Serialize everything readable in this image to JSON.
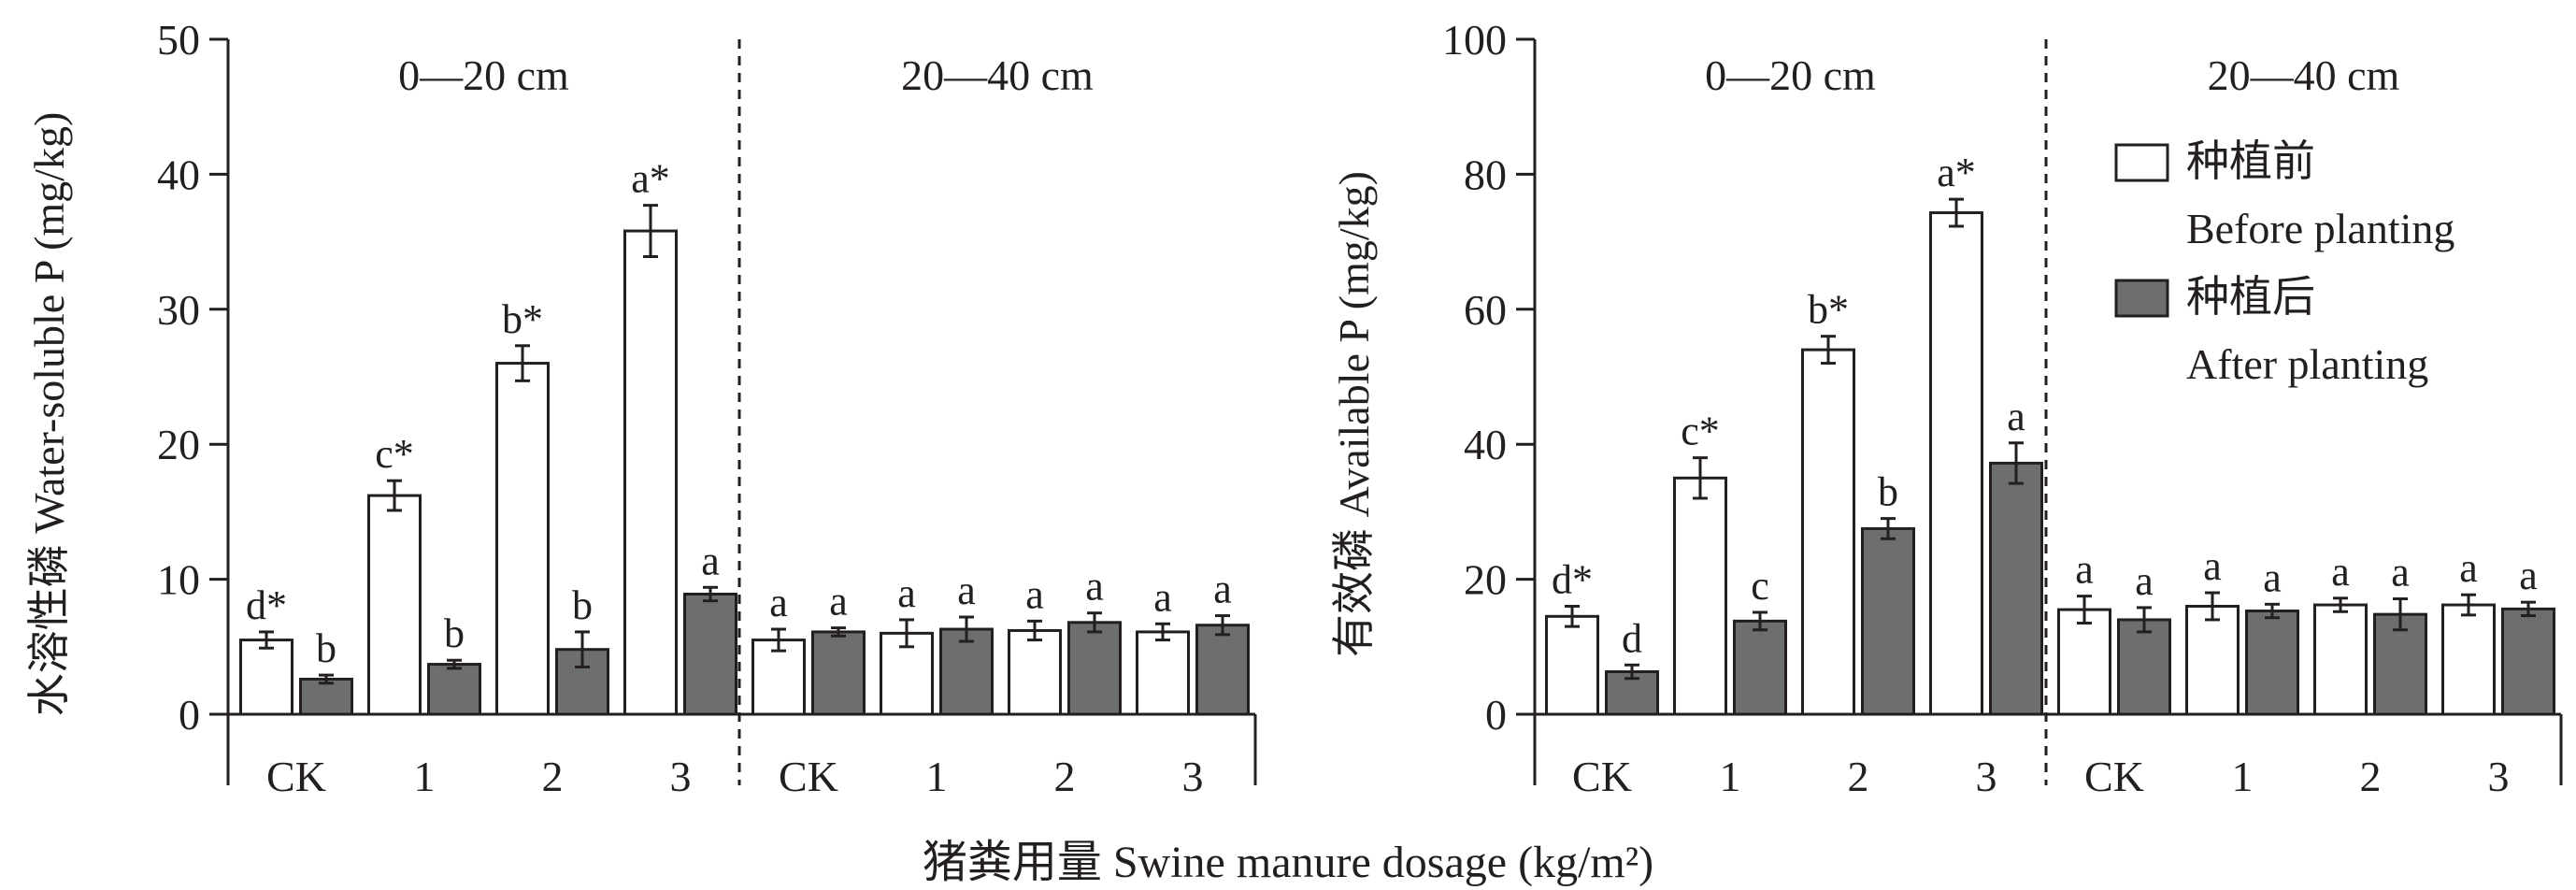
{
  "figure": {
    "xlabel": "猪粪用量 Swine manure dosage (kg/m²)"
  },
  "chart_data": [
    {
      "type": "bar",
      "ylabel": "水溶性磷 Water-soluble P (mg/kg)",
      "ylim": [
        0,
        50
      ],
      "yticks": [
        "0",
        "10",
        "20",
        "30",
        "40",
        "50"
      ],
      "groups": [
        {
          "label": "0—20 cm",
          "categories": [
            "CK",
            "1",
            "2",
            "3"
          ]
        },
        {
          "label": "20—40 cm",
          "categories": [
            "CK",
            "1",
            "2",
            "3"
          ]
        }
      ],
      "series": [
        {
          "name": "种植前 Before planting",
          "values": [
            5.5,
            16.2,
            26.0,
            35.8,
            5.5,
            6.0,
            6.2,
            6.1
          ],
          "errors": [
            0.6,
            1.1,
            1.3,
            1.9,
            0.8,
            1.0,
            0.7,
            0.6
          ],
          "labels": [
            "d*",
            "c*",
            "b*",
            "a*",
            "a",
            "a",
            "a",
            "a"
          ]
        },
        {
          "name": "种植后 After planting",
          "values": [
            2.6,
            3.7,
            4.8,
            8.9,
            6.1,
            6.3,
            6.8,
            6.6
          ],
          "errors": [
            0.3,
            0.3,
            1.3,
            0.5,
            0.3,
            0.9,
            0.7,
            0.7
          ],
          "labels": [
            "b",
            "b",
            "b",
            "a",
            "a",
            "a",
            "a",
            "a"
          ]
        }
      ],
      "legend": "none",
      "grid": false
    },
    {
      "type": "bar",
      "ylabel": "有效磷 Available P (mg/kg)",
      "ylim": [
        0,
        100
      ],
      "yticks": [
        "0",
        "20",
        "40",
        "60",
        "80",
        "100"
      ],
      "groups": [
        {
          "label": "0—20 cm",
          "categories": [
            "CK",
            "1",
            "2",
            "3"
          ]
        },
        {
          "label": "20—40 cm",
          "categories": [
            "CK",
            "1",
            "2",
            "3"
          ]
        }
      ],
      "series": [
        {
          "name": "种植前 Before planting",
          "values": [
            14.5,
            35.0,
            54.0,
            74.3,
            15.5,
            16.0,
            16.2,
            16.2
          ],
          "errors": [
            1.5,
            3.0,
            2.0,
            2.0,
            2.0,
            2.0,
            1.0,
            1.5
          ],
          "labels": [
            "d*",
            "c*",
            "b*",
            "a*",
            "a",
            "a",
            "a",
            "a"
          ]
        },
        {
          "name": "种植后 After planting",
          "values": [
            6.3,
            13.8,
            27.5,
            37.2,
            14.0,
            15.3,
            14.8,
            15.6
          ],
          "errors": [
            1.0,
            1.3,
            1.5,
            3.0,
            1.8,
            1.0,
            2.3,
            1.0
          ],
          "labels": [
            "d",
            "c",
            "b",
            "a",
            "a",
            "a",
            "a",
            "a"
          ]
        }
      ],
      "legend": "top-right",
      "legend_entries": [
        {
          "cn": "种植前",
          "en": "Before planting",
          "fill": "#ffffff"
        },
        {
          "cn": "种植后",
          "en": "After planting",
          "fill": "#6d6e70"
        }
      ],
      "grid": false
    }
  ],
  "colors": {
    "before_fill": "#ffffff",
    "after_fill": "#6d6e70",
    "stroke": "#231f20",
    "text": "#231f20"
  }
}
